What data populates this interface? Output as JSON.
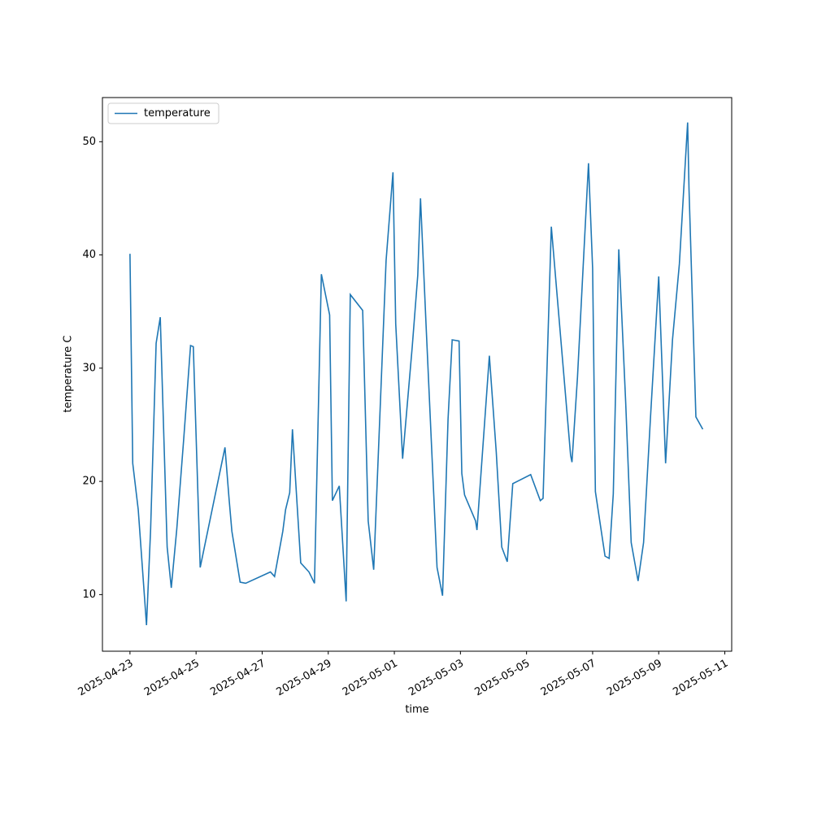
{
  "chart_data": {
    "type": "line",
    "x_label": "time",
    "y_label": "temperature C",
    "x": [
      "2025-04-23 00:00",
      "2025-04-23 02:00",
      "2025-04-23 06:00",
      "2025-04-23 12:00",
      "2025-04-23 15:00",
      "2025-04-23 19:00",
      "2025-04-23 22:00",
      "2025-04-24 03:00",
      "2025-04-24 06:00",
      "2025-04-24 10:00",
      "2025-04-24 15:00",
      "2025-04-24 20:00",
      "2025-04-24 22:00",
      "2025-04-25 03:00",
      "2025-04-25 21:00",
      "2025-04-26 00:00",
      "2025-04-26 02:00",
      "2025-04-26 08:00",
      "2025-04-26 12:00",
      "2025-04-27 06:00",
      "2025-04-27 09:00",
      "2025-04-27 15:00",
      "2025-04-27 17:00",
      "2025-04-27 20:00",
      "2025-04-27 22:00",
      "2025-04-28 04:00",
      "2025-04-28 10:00",
      "2025-04-28 14:00",
      "2025-04-28 19:00",
      "2025-04-29 01:00",
      "2025-04-29 03:00",
      "2025-04-29 08:00",
      "2025-04-29 13:00",
      "2025-04-29 16:00",
      "2025-04-30 01:00",
      "2025-04-30 05:00",
      "2025-04-30 09:00",
      "2025-04-30 18:00",
      "2025-04-30 23:00",
      "2025-05-01 01:00",
      "2025-05-01 06:00",
      "2025-05-01 13:00",
      "2025-05-01 17:00",
      "2025-05-01 19:00",
      "2025-05-01 23:00",
      "2025-05-02 07:00",
      "2025-05-02 11:00",
      "2025-05-02 15:00",
      "2025-05-02 18:00",
      "2025-05-02 23:00",
      "2025-05-03 01:00",
      "2025-05-03 03:00",
      "2025-05-03 11:00",
      "2025-05-03 12:00",
      "2025-05-03 21:00",
      "2025-05-04 02:00",
      "2025-05-04 06:00",
      "2025-05-04 10:00",
      "2025-05-04 14:00",
      "2025-05-05 03:00",
      "2025-05-05 10:00",
      "2025-05-05 12:00",
      "2025-05-05 18:00",
      "2025-05-06 08:00",
      "2025-05-06 09:00",
      "2025-05-06 13:00",
      "2025-05-06 17:00",
      "2025-05-06 21:00",
      "2025-05-07 00:00",
      "2025-05-07 02:00",
      "2025-05-07 09:00",
      "2025-05-07 12:00",
      "2025-05-07 15:00",
      "2025-05-07 19:00",
      "2025-05-08 00:00",
      "2025-05-08 04:00",
      "2025-05-08 09:00",
      "2025-05-08 13:00",
      "2025-05-08 18:00",
      "2025-05-09 00:00",
      "2025-05-09 05:00",
      "2025-05-09 10:00",
      "2025-05-09 15:00",
      "2025-05-09 21:00",
      "2025-05-09 22:00",
      "2025-05-10 03:00",
      "2025-05-10 08:00"
    ],
    "series": [
      {
        "name": "temperature",
        "color": "#1f77b4",
        "values": [
          40.1,
          21.6,
          17.5,
          7.3,
          15.8,
          32.2,
          34.5,
          14.2,
          10.6,
          15.8,
          23.7,
          32.0,
          31.9,
          12.4,
          23.0,
          18.4,
          15.6,
          11.1,
          11.0,
          12.0,
          11.6,
          15.6,
          17.5,
          19.0,
          24.6,
          12.8,
          12.0,
          11.0,
          38.3,
          34.7,
          18.3,
          19.6,
          9.4,
          36.5,
          35.1,
          16.5,
          12.2,
          39.5,
          47.3,
          33.9,
          22.0,
          31.9,
          38.2,
          45.0,
          33.9,
          12.4,
          9.9,
          25.5,
          32.5,
          32.4,
          20.7,
          18.8,
          16.5,
          15.7,
          31.1,
          22.6,
          14.2,
          12.9,
          19.8,
          20.6,
          18.3,
          18.5,
          42.5,
          22.3,
          21.7,
          29.2,
          38.7,
          48.1,
          38.8,
          19.1,
          13.4,
          13.2,
          18.9,
          40.5,
          27.0,
          14.6,
          11.2,
          14.6,
          25.6,
          38.1,
          21.6,
          32.5,
          39.2,
          51.7,
          45.8,
          25.7,
          24.6
        ]
      }
    ],
    "xlim": [
      "2025-04-22 04:00",
      "2025-05-11 05:00"
    ],
    "xticks": [
      "2025-04-23",
      "2025-04-25",
      "2025-04-27",
      "2025-04-29",
      "2025-05-01",
      "2025-05-03",
      "2025-05-05",
      "2025-05-07",
      "2025-05-09",
      "2025-05-11"
    ],
    "ylim": [
      5.0,
      53.9
    ],
    "yticks": [
      10,
      20,
      30,
      40,
      50
    ],
    "grid": false,
    "legend": "upper left"
  }
}
